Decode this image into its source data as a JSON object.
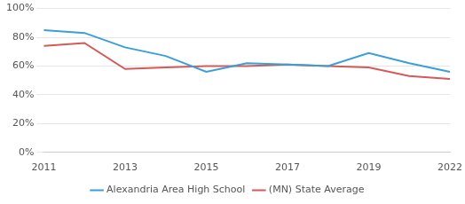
{
  "chart_data": {
    "type": "line",
    "categories": [
      "2011",
      null,
      "2013",
      null,
      "2015",
      null,
      "2017",
      null,
      "2019",
      null,
      "2022"
    ],
    "series": [
      {
        "name": "Alexandria Area High School",
        "color": "#3a9fd8",
        "values": [
          85,
          83,
          73,
          67,
          56,
          62,
          61,
          60,
          69,
          62,
          56
        ]
      },
      {
        "name": "(MN) State Average",
        "color": "#d45a5a",
        "values": [
          74,
          76,
          58,
          59,
          60,
          60,
          61,
          60,
          59,
          53,
          51
        ]
      }
    ],
    "ylim": [
      0,
      100
    ],
    "yticks": [
      {
        "value": 0,
        "label": "0%"
      },
      {
        "value": 20,
        "label": "20%"
      },
      {
        "value": 40,
        "label": "40%"
      },
      {
        "value": 60,
        "label": "60%"
      },
      {
        "value": 80,
        "label": "80%"
      },
      {
        "value": 100,
        "label": "100%"
      }
    ],
    "grid": true,
    "legend": "bottom"
  }
}
